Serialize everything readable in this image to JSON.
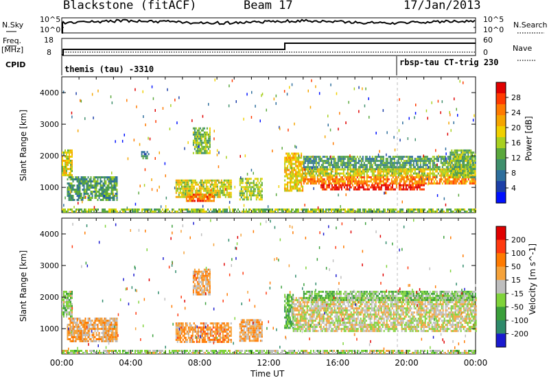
{
  "header": {
    "station": "Blackstone (fitACF)",
    "beam": "Beam 17",
    "date": "17/Jan/2013"
  },
  "noise_panel": {
    "left_label": "N.Sky",
    "left_ticks": [
      "10^5",
      "10^0"
    ],
    "right_ticks": [
      "10^5",
      "10^0"
    ],
    "right_label": "N.Search"
  },
  "freq_panel": {
    "left_label_1": "Freq.",
    "left_label_2": "[MHz]",
    "left_ticks": [
      "18",
      "8"
    ],
    "right_ticks": [
      "60",
      "0"
    ],
    "right_label": "Nave",
    "cpid_label": "CPID",
    "cpid_1": "themis (tau) -3310",
    "cpid_2": "rbsp-tau CT-trig 230"
  },
  "chart_data": [
    {
      "type": "heatmap",
      "panel": "power",
      "ylabel": "Slant Range [km]",
      "yticks": [
        "1000",
        "2000",
        "3000",
        "4000"
      ],
      "ylim": [
        200,
        4500
      ],
      "xlim": [
        0,
        24
      ],
      "colorbar_label": "Power [dB]",
      "colorbar_ticks": [
        "4",
        "8",
        "12",
        "16",
        "20",
        "24",
        "28"
      ],
      "colors": [
        "#0010ff",
        "#1c3fa8",
        "#2d6e9c",
        "#3f8f6c",
        "#5aa83c",
        "#a8d020",
        "#f0d000",
        "#f5a500",
        "#ff7a00",
        "#ff3a00",
        "#e00000"
      ],
      "regions": [
        {
          "t0": 0.0,
          "t1": 24.0,
          "r0": 200,
          "r1": 330,
          "v": 0.45
        },
        {
          "t0": 0.0,
          "t1": 0.6,
          "r0": 1400,
          "r1": 2200,
          "v": 0.55
        },
        {
          "t0": 0.3,
          "t1": 3.2,
          "r0": 600,
          "r1": 1350,
          "v": 0.35
        },
        {
          "t0": 4.6,
          "t1": 5.0,
          "r0": 1950,
          "r1": 2150,
          "v": 0.3
        },
        {
          "t0": 7.6,
          "t1": 8.6,
          "r0": 2100,
          "r1": 2900,
          "v": 0.45
        },
        {
          "t0": 6.6,
          "t1": 9.8,
          "r0": 700,
          "r1": 1250,
          "v": 0.55
        },
        {
          "t0": 7.2,
          "t1": 8.8,
          "r0": 600,
          "r1": 800,
          "v": 0.8
        },
        {
          "t0": 10.3,
          "t1": 11.6,
          "r0": 600,
          "r1": 1300,
          "v": 0.5
        },
        {
          "t0": 12.9,
          "t1": 14.0,
          "r0": 900,
          "r1": 2100,
          "v": 0.6
        },
        {
          "t0": 14.0,
          "t1": 24.0,
          "r0": 1600,
          "r1": 2000,
          "v": 0.35
        },
        {
          "t0": 14.0,
          "t1": 24.0,
          "r0": 1350,
          "r1": 1600,
          "v": 0.55
        },
        {
          "t0": 14.0,
          "t1": 24.0,
          "r0": 1100,
          "r1": 1350,
          "v": 0.75
        },
        {
          "t0": 15.0,
          "t1": 21.0,
          "r0": 950,
          "r1": 1100,
          "v": 0.92
        },
        {
          "t0": 22.5,
          "t1": 24.0,
          "r0": 1300,
          "r1": 2200,
          "v": 0.45
        }
      ]
    },
    {
      "type": "heatmap",
      "panel": "velocity",
      "ylabel": "Slant Range [km]",
      "yticks": [
        "1000",
        "2000",
        "3000",
        "4000"
      ],
      "ylim": [
        200,
        4500
      ],
      "xlim": [
        0,
        24
      ],
      "xlabel": "Time UT",
      "xticks": [
        "00:00",
        "04:00",
        "08:00",
        "12:00",
        "16:00",
        "20:00",
        "00:00"
      ],
      "colorbar_label": "Velocity [m s^-1]",
      "colorbar_ticks": [
        "200",
        "100",
        "50",
        "15",
        "-15",
        "-50",
        "-100",
        "-200"
      ],
      "colors": [
        "#1a1acf",
        "#2e8a6a",
        "#3a9f3a",
        "#7fd33a",
        "#bebebe",
        "#f5a23a",
        "#ff7a00",
        "#ff3a10",
        "#e00000"
      ],
      "regions": [
        {
          "t0": 0.0,
          "t1": 24.0,
          "r0": 200,
          "r1": 330,
          "v": 0.45
        },
        {
          "t0": 0.0,
          "t1": 0.6,
          "r0": 1400,
          "r1": 2200,
          "v": 0.42
        },
        {
          "t0": 0.3,
          "t1": 3.2,
          "r0": 600,
          "r1": 1350,
          "v": 0.6
        },
        {
          "t0": 7.6,
          "t1": 8.6,
          "r0": 2100,
          "r1": 2900,
          "v": 0.62
        },
        {
          "t0": 6.6,
          "t1": 9.8,
          "r0": 600,
          "r1": 1200,
          "v": 0.65
        },
        {
          "t0": 10.3,
          "t1": 11.6,
          "r0": 600,
          "r1": 1300,
          "v": 0.62
        },
        {
          "t0": 12.9,
          "t1": 13.4,
          "r0": 1000,
          "r1": 2100,
          "v": 0.35
        },
        {
          "t0": 13.4,
          "t1": 24.0,
          "r0": 900,
          "r1": 2000,
          "v": 0.5
        },
        {
          "t0": 14.0,
          "t1": 24.0,
          "r0": 1900,
          "r1": 2200,
          "v": 0.38
        }
      ]
    }
  ]
}
